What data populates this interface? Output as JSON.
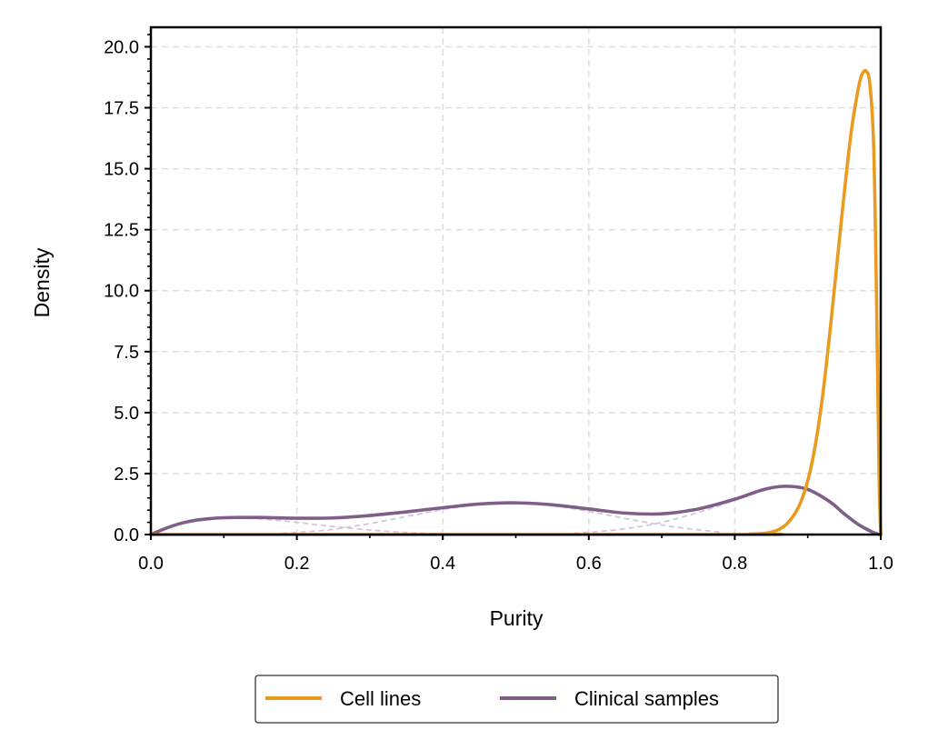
{
  "chart_data": {
    "type": "line",
    "xlabel": "Purity",
    "ylabel": "Density",
    "xlim": [
      0.0,
      1.0
    ],
    "ylim": [
      0.0,
      20.8
    ],
    "xticks": [
      0.0,
      0.2,
      0.4,
      0.6,
      0.8,
      1.0
    ],
    "xtick_labels": [
      "0.0",
      "0.2",
      "0.4",
      "0.6",
      "0.8",
      "1.0"
    ],
    "yticks": [
      0.0,
      2.5,
      5.0,
      7.5,
      10.0,
      12.5,
      15.0,
      17.5,
      20.0
    ],
    "ytick_labels": [
      "0.0",
      "2.5",
      "5.0",
      "7.5",
      "10.0",
      "12.5",
      "15.0",
      "17.5",
      "20.0"
    ],
    "grid": true,
    "legend_position": "bottom-center-outside",
    "series": [
      {
        "name": "Cell lines",
        "color": "#E89B1E",
        "x": [
          0.0,
          0.8,
          0.82,
          0.84,
          0.85,
          0.86,
          0.87,
          0.88,
          0.89,
          0.9,
          0.91,
          0.92,
          0.93,
          0.94,
          0.95,
          0.96,
          0.97,
          0.975,
          0.98,
          0.985,
          0.99,
          0.993,
          0.996,
          0.998,
          1.0
        ],
        "values": [
          0.0,
          0.0,
          0.02,
          0.05,
          0.1,
          0.2,
          0.4,
          0.75,
          1.3,
          2.2,
          3.6,
          5.6,
          8.2,
          11.1,
          14.0,
          16.6,
          18.4,
          18.9,
          19.0,
          18.5,
          16.2,
          12.0,
          6.0,
          2.0,
          0.0
        ]
      },
      {
        "name": "Clinical samples",
        "color": "#7F5F87",
        "x": [
          0.0,
          0.02,
          0.04,
          0.06,
          0.08,
          0.1,
          0.12,
          0.15,
          0.2,
          0.25,
          0.3,
          0.35,
          0.4,
          0.45,
          0.5,
          0.55,
          0.6,
          0.65,
          0.7,
          0.75,
          0.8,
          0.84,
          0.87,
          0.9,
          0.93,
          0.95,
          0.97,
          0.99,
          1.0
        ],
        "values": [
          0.0,
          0.25,
          0.45,
          0.58,
          0.65,
          0.69,
          0.7,
          0.7,
          0.67,
          0.68,
          0.78,
          0.93,
          1.1,
          1.25,
          1.3,
          1.22,
          1.05,
          0.88,
          0.85,
          1.05,
          1.45,
          1.85,
          1.98,
          1.85,
          1.35,
          0.85,
          0.4,
          0.08,
          0.0
        ]
      }
    ],
    "components": [
      {
        "color": "#D3C6D6",
        "x": [
          0.0,
          0.04,
          0.08,
          0.12,
          0.16,
          0.2,
          0.24,
          0.28,
          0.32,
          0.36,
          0.4
        ],
        "values": [
          0.0,
          0.45,
          0.64,
          0.68,
          0.62,
          0.5,
          0.36,
          0.24,
          0.14,
          0.07,
          0.03
        ]
      },
      {
        "color": "#D3C6D6",
        "x": [
          0.18,
          0.24,
          0.3,
          0.36,
          0.42,
          0.48,
          0.54,
          0.6,
          0.66,
          0.72,
          0.78
        ],
        "values": [
          0.05,
          0.18,
          0.45,
          0.8,
          1.12,
          1.29,
          1.22,
          0.95,
          0.6,
          0.3,
          0.1
        ]
      },
      {
        "color": "#D3C6D6",
        "x": [
          0.58,
          0.64,
          0.7,
          0.76,
          0.8,
          0.84,
          0.87,
          0.9,
          0.93,
          0.96,
          1.0
        ],
        "values": [
          0.05,
          0.2,
          0.5,
          1.0,
          1.4,
          1.8,
          1.96,
          1.82,
          1.3,
          0.6,
          0.0
        ]
      }
    ]
  }
}
